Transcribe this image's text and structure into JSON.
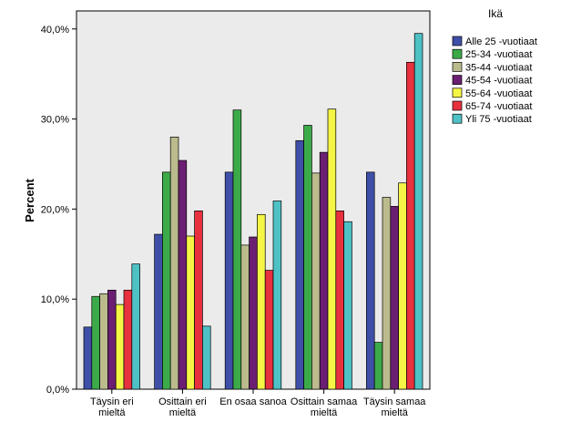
{
  "chart_data": {
    "type": "bar",
    "title": "",
    "xlabel": "",
    "ylabel": "Percent",
    "ylim": [
      0,
      42
    ],
    "yticks": [
      0,
      10,
      20,
      30,
      40
    ],
    "ytick_labels": [
      "0,0%",
      "10,0%",
      "20,0%",
      "30,0%",
      "40,0%"
    ],
    "categories": [
      [
        "Täysin eri",
        "mieltä"
      ],
      [
        "Osittain eri",
        "mieltä"
      ],
      [
        "En osaa sanoa"
      ],
      [
        "Osittain samaa",
        "mieltä"
      ],
      [
        "Täysin samaa",
        "mieltä"
      ]
    ],
    "legend_title": "Ikä",
    "legend_position": "right",
    "grid": false,
    "series": [
      {
        "name": "Alle 25 -vuotiaat",
        "color": "#3f4fa8",
        "values": [
          6.9,
          17.2,
          24.1,
          27.6,
          24.1
        ]
      },
      {
        "name": "25-34 -vuotiaat",
        "color": "#3daa4a",
        "values": [
          10.3,
          24.1,
          31.0,
          29.3,
          5.2
        ]
      },
      {
        "name": "35-44 -vuotiaat",
        "color": "#bbbb8e",
        "values": [
          10.6,
          28.0,
          16.0,
          24.0,
          21.3
        ]
      },
      {
        "name": "45-54 -vuotiaat",
        "color": "#6b1f72",
        "values": [
          11.0,
          25.4,
          16.9,
          26.3,
          20.3
        ]
      },
      {
        "name": "55-64 -vuotiaat",
        "color": "#f5f546",
        "values": [
          9.4,
          17.0,
          19.4,
          31.1,
          22.9
        ]
      },
      {
        "name": "65-74 -vuotiaat",
        "color": "#e8313e",
        "values": [
          11.0,
          19.8,
          13.2,
          19.8,
          36.3
        ]
      },
      {
        "name": "Yli 75 -vuotiaat",
        "color": "#4ec1c5",
        "values": [
          13.9,
          7.0,
          20.9,
          18.6,
          39.5
        ]
      }
    ]
  }
}
